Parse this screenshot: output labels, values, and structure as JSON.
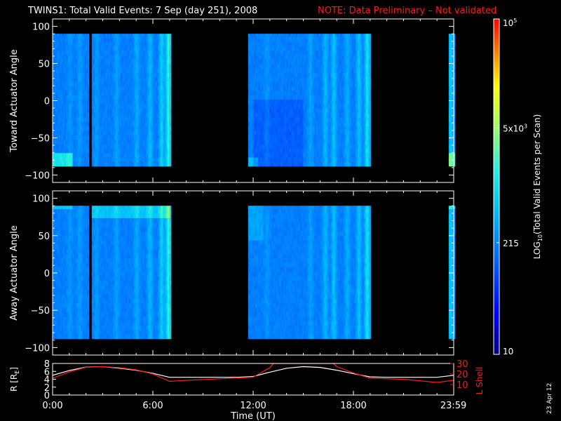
{
  "header": {
    "title": "TWINS1: Total Valid Events:  7 Sep (day 251), 2008",
    "note": "NOTE: Data Preliminary – Not validated",
    "note_color": "#ff1a1a"
  },
  "footer": {
    "date_stamp": "23 Apr 12"
  },
  "chart_data": [
    {
      "type": "heatmap",
      "name": "toward",
      "ylabel": "Toward Actuator Angle",
      "ylim": [
        -110,
        110
      ],
      "yticks": [
        100,
        50,
        0,
        -50,
        -100
      ],
      "xlim": [
        0,
        24
      ],
      "data_ylim": [
        -88,
        90
      ],
      "gaps_hours": [
        [
          2.18,
          2.32
        ],
        [
          7.1,
          11.7
        ],
        [
          19.0,
          23.7
        ]
      ]
    },
    {
      "type": "heatmap",
      "name": "away",
      "ylabel": "Away Actuator Angle",
      "ylim": [
        -110,
        110
      ],
      "yticks": [
        100,
        50,
        0,
        -50,
        -100
      ],
      "xlim": [
        0,
        24
      ],
      "data_ylim": [
        -88,
        90
      ],
      "gaps_hours": [
        [
          2.18,
          2.32
        ],
        [
          7.1,
          11.7
        ],
        [
          19.0,
          23.7
        ]
      ]
    },
    {
      "type": "line",
      "name": "orbit",
      "ylabel": "R [R",
      "ylabel_sub": "E",
      "ylabel_close": "]",
      "ylim": [
        0,
        8
      ],
      "yticks": [
        0,
        2,
        4,
        6,
        8
      ],
      "y2label": "L Shell",
      "y2lim": [
        0,
        30
      ],
      "y2ticks": [
        10,
        20,
        30
      ],
      "xlabel": "Time (UT)",
      "xticks": [
        {
          "h": 0,
          "label": "0:00"
        },
        {
          "h": 6,
          "label": "6:00"
        },
        {
          "h": 12,
          "label": "12:00"
        },
        {
          "h": 18,
          "label": "18:00"
        },
        {
          "h": 23.983,
          "label": "23:59"
        }
      ],
      "series": [
        {
          "name": "R [RE]",
          "color": "#ffffff",
          "x": [
            0,
            1,
            2,
            3,
            4,
            5,
            6,
            7,
            8,
            9,
            10,
            11,
            12,
            13,
            14,
            15,
            16,
            17,
            18,
            19,
            20,
            21,
            22,
            23,
            24
          ],
          "y": [
            5.0,
            6.2,
            7.1,
            7.2,
            6.8,
            6.3,
            5.5,
            4.5,
            4.5,
            4.5,
            4.5,
            4.5,
            4.7,
            5.8,
            6.8,
            7.2,
            7.0,
            6.3,
            5.4,
            4.6,
            4.5,
            4.5,
            4.5,
            4.5,
            5.0
          ]
        },
        {
          "name": "L Shell",
          "color": "#ff1a1a",
          "axis": "y2",
          "x": [
            0,
            1,
            2,
            3,
            4,
            5,
            6,
            7,
            8,
            10,
            12,
            13,
            13.2,
            16.8,
            17,
            18,
            19,
            21,
            23,
            24
          ],
          "y": [
            16,
            22,
            26.5,
            27,
            26,
            24,
            20,
            13,
            14,
            15.5,
            17,
            26,
            30,
            30,
            27,
            21,
            16,
            15,
            12,
            14
          ]
        }
      ]
    },
    {
      "type": "colorbar",
      "label": "LOG",
      "label_sub": "10",
      "label_rest": "(Total Valid Events per Scan)",
      "scale": "log",
      "min": 10,
      "max": 100000,
      "ticks": [
        {
          "value": 100000,
          "label": "10",
          "sup": "5"
        },
        {
          "value": 5000,
          "label": "5x10",
          "sup": "3"
        },
        {
          "value": 215,
          "label": "215"
        },
        {
          "value": 10,
          "label": "10"
        }
      ]
    }
  ]
}
